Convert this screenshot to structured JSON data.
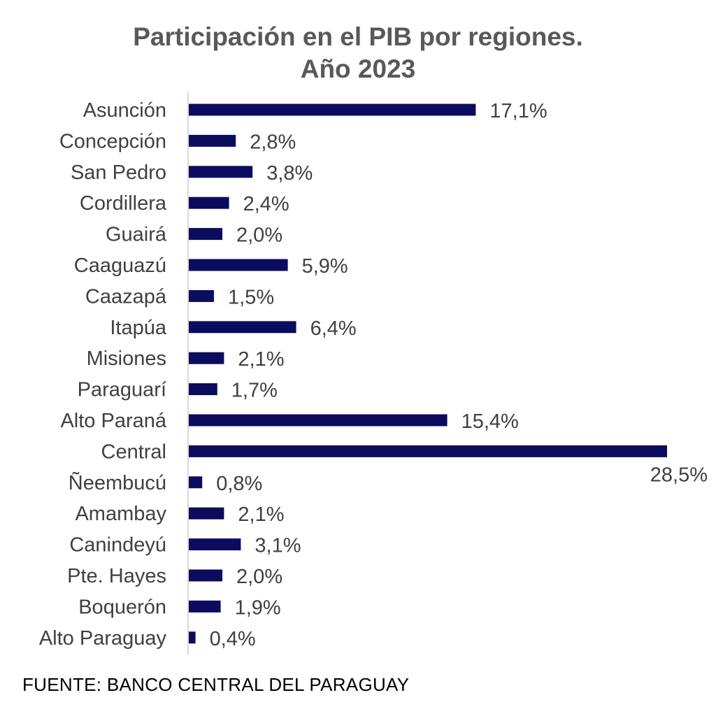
{
  "chart_data": {
    "type": "bar",
    "orientation": "horizontal",
    "title": "Participación en el PIB por regiones.",
    "subtitle": "Año 2023",
    "xlabel": "",
    "ylabel": "",
    "grid": false,
    "legend": "none",
    "bar_color": "#0c0c5e",
    "axis_color": "#d9d9d9",
    "xlim": [
      0,
      28.5
    ],
    "categories": [
      "Asunción",
      "Concepción",
      "San Pedro",
      "Cordillera",
      "Guairá",
      "Caaguazú",
      "Caazapá",
      "Itapúa",
      "Misiones",
      "Paraguarí",
      "Alto Paraná",
      "Central",
      "Ñeembucú",
      "Amambay",
      "Canindeyú",
      "Pte. Hayes",
      "Boquerón",
      "Alto Paraguay"
    ],
    "values": [
      17.1,
      2.8,
      3.8,
      2.4,
      2.0,
      5.9,
      1.5,
      6.4,
      2.1,
      1.7,
      15.4,
      28.5,
      0.8,
      2.1,
      3.1,
      2.0,
      1.9,
      0.4
    ],
    "value_labels": [
      "17,1%",
      "2,8%",
      "3,8%",
      "2,4%",
      "2,0%",
      "5,9%",
      "1,5%",
      "6,4%",
      "2,1%",
      "1,7%",
      "15,4%",
      "28,5%",
      "0,8%",
      "2,1%",
      "3,1%",
      "2,0%",
      "1,9%",
      "0,4%"
    ]
  },
  "source": "FUENTE: BANCO CENTRAL DEL PARAGUAY"
}
